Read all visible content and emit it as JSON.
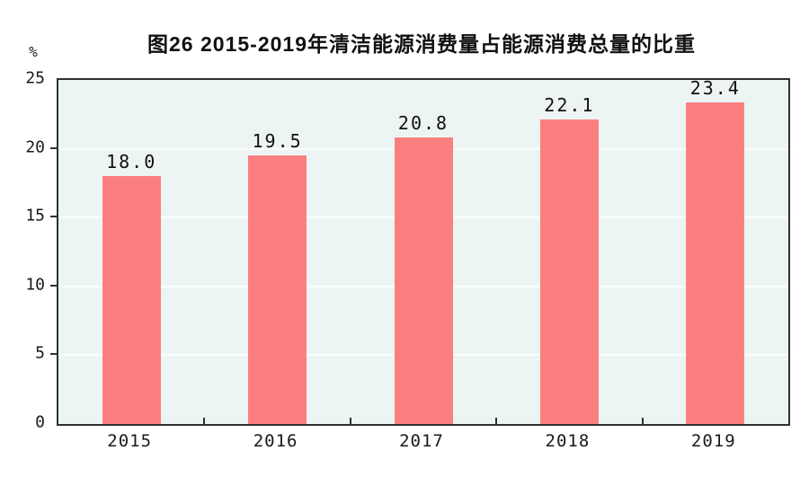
{
  "chart_data": {
    "type": "bar",
    "title": "图26  2015-2019年清洁能源消费量占能源消费总量的比重",
    "categories": [
      "2015",
      "2016",
      "2017",
      "2018",
      "2019"
    ],
    "values": [
      18.0,
      19.5,
      20.8,
      22.1,
      23.4
    ],
    "value_labels": [
      "18.0",
      "19.5",
      "20.8",
      "22.1",
      "23.4"
    ],
    "xlabel": "",
    "ylabel": "%",
    "ylim": [
      0,
      25
    ],
    "yticks": [
      0,
      5,
      10,
      15,
      20,
      25
    ],
    "grid": true,
    "legend_position": "none",
    "colors": {
      "bar": "#FC7F7F",
      "plot_background": "#EDF4F4",
      "gridline": "#FBFDFD",
      "axis": "#303030",
      "text": "#111111"
    }
  }
}
